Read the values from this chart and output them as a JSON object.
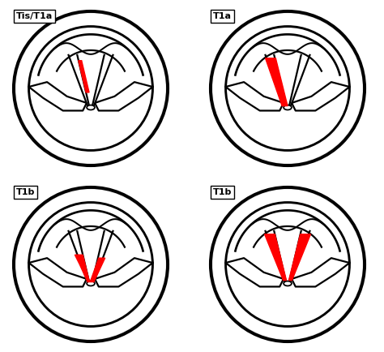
{
  "background_color": "#ffffff",
  "tumor_color": "#ff0000",
  "label_color": "#000000",
  "panels": [
    {
      "label": "Tis/T1a"
    },
    {
      "label": "T1a"
    },
    {
      "label": "T1b"
    },
    {
      "label": "T1b"
    }
  ],
  "lw": 1.6
}
